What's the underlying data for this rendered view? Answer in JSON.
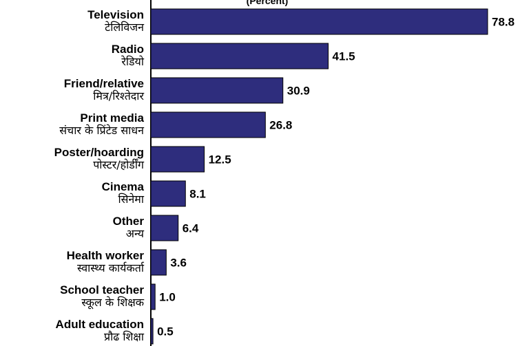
{
  "chart_data": {
    "type": "bar",
    "orientation": "horizontal",
    "title": "(Percent)",
    "categories": [
      {
        "en": "Television",
        "hi": "टेलिविजन"
      },
      {
        "en": "Radio",
        "hi": "रेडियो"
      },
      {
        "en": "Friend/relative",
        "hi": "मित्र/रिश्तेदार"
      },
      {
        "en": "Print media",
        "hi": "संचार के प्रिंटेड साधन"
      },
      {
        "en": "Poster/hoarding",
        "hi": "पोस्टर/होर्डींग"
      },
      {
        "en": "Cinema",
        "hi": "सिनेमा"
      },
      {
        "en": "Other",
        "hi": "अन्य"
      },
      {
        "en": "Health worker",
        "hi": "स्वास्थ्य कार्यकर्ता"
      },
      {
        "en": "School teacher",
        "hi": "स्कूल के शिक्षक"
      },
      {
        "en": "Adult education",
        "hi": "प्रौढ शिक्षा"
      }
    ],
    "values": [
      78.8,
      41.5,
      30.9,
      26.8,
      12.5,
      8.1,
      6.4,
      3.6,
      1.0,
      0.5
    ],
    "value_labels": [
      "78.8",
      "41.5",
      "30.9",
      "26.8",
      "12.5",
      "8.1",
      "6.4",
      "3.6",
      "1.0",
      "0.5"
    ],
    "xlim": [
      0,
      78.8
    ],
    "grid": false,
    "bar_color": "#2e2d7d",
    "bar_stroke": "#000000"
  }
}
